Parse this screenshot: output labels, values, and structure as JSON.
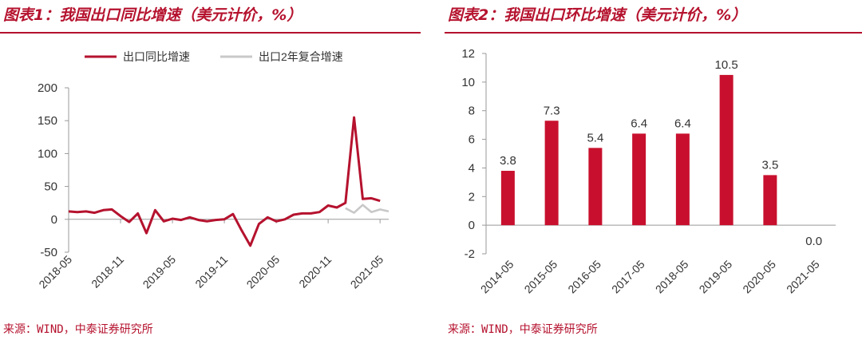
{
  "chart_data": [
    {
      "title": "图表1：我国出口同比增速（美元计价，%）",
      "source": "来源：WIND，中泰证券研究所",
      "type": "line",
      "ylim": [
        -50,
        200
      ],
      "yticks": [
        "200",
        "150",
        "100",
        "50",
        "0",
        "-50"
      ],
      "xtick_labels": [
        "2018-05",
        "2018-11",
        "2019-05",
        "2019-11",
        "2020-05",
        "2020-11",
        "2021-05"
      ],
      "legend_position": "top",
      "series": [
        {
          "name": "出口同比增速",
          "color": "#b5122e",
          "x": [
            "2018-05",
            "2018-06",
            "2018-07",
            "2018-08",
            "2018-09",
            "2018-10",
            "2018-11",
            "2018-12",
            "2019-01",
            "2019-02",
            "2019-03",
            "2019-04",
            "2019-05",
            "2019-06",
            "2019-07",
            "2019-08",
            "2019-09",
            "2019-10",
            "2019-11",
            "2019-12",
            "2020-01",
            "2020-02",
            "2020-03",
            "2020-04",
            "2020-05",
            "2020-06",
            "2020-07",
            "2020-08",
            "2020-09",
            "2020-10",
            "2020-11",
            "2020-12",
            "2021-01",
            "2021-02",
            "2021-03",
            "2021-04",
            "2021-05",
            "2021-06"
          ],
          "values": [
            12,
            11,
            12,
            10,
            14,
            15,
            5,
            -4,
            9,
            -21,
            14,
            -3,
            1,
            -1,
            3,
            -1,
            -3,
            -1,
            0,
            8,
            -17,
            -40,
            -7,
            3,
            -3,
            0,
            7,
            9,
            9,
            11,
            21,
            18,
            25,
            155,
            31,
            32,
            28,
            null
          ]
        },
        {
          "name": "出口2年复合增速",
          "color": "#c8c8c8",
          "x": [
            "2021-01",
            "2021-02",
            "2021-03",
            "2021-04",
            "2021-05",
            "2021-06"
          ],
          "values": [
            17,
            10,
            22,
            11,
            15,
            12
          ]
        }
      ]
    },
    {
      "title": "图表2：我国出口环比增速（美元计价，%）",
      "source": "来源：WIND，中泰证券研究所",
      "type": "bar",
      "ylim": [
        -2,
        12
      ],
      "yticks": [
        "12",
        "10",
        "8",
        "6",
        "4",
        "2",
        "0",
        "-2"
      ],
      "categories": [
        "2014-05",
        "2015-05",
        "2016-05",
        "2017-05",
        "2018-05",
        "2019-05",
        "2020-05",
        "2021-05"
      ],
      "values": [
        3.8,
        7.3,
        5.4,
        6.4,
        6.4,
        10.5,
        3.5,
        0.0
      ],
      "value_labels": [
        "3.8",
        "7.3",
        "5.4",
        "6.4",
        "6.4",
        "10.5",
        "3.5",
        "0.0"
      ],
      "color": "#c8102e"
    }
  ]
}
